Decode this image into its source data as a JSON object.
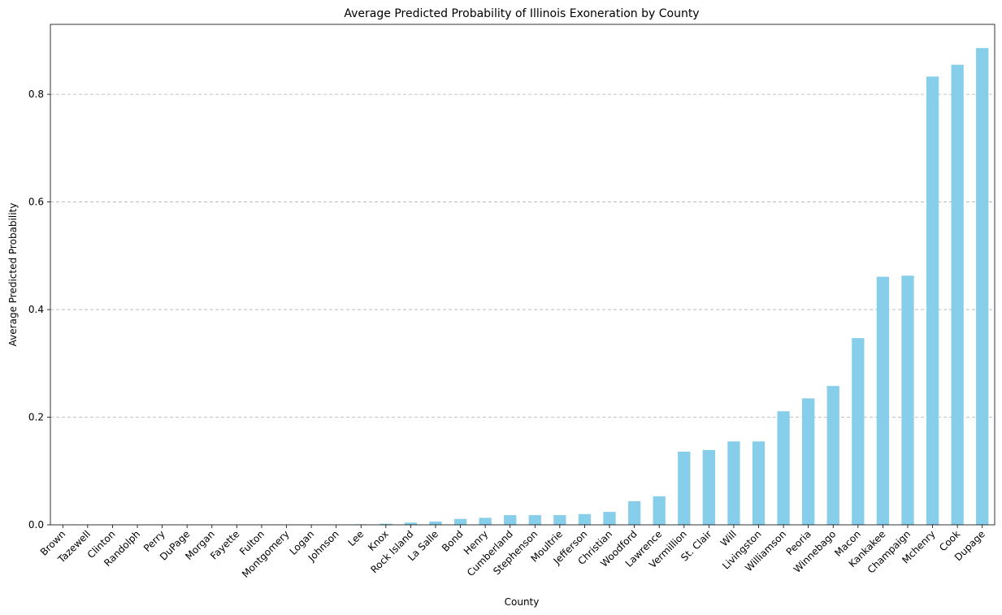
{
  "chart_data": {
    "type": "bar",
    "title": "Average Predicted Probability of Illinois Exoneration by County",
    "xlabel": "County",
    "ylabel": "Average Predicted Probability",
    "ylim": [
      0,
      0.93
    ],
    "yticks": [
      "0.0",
      "0.2",
      "0.4",
      "0.6",
      "0.8"
    ],
    "ytick_values": [
      0,
      0.2,
      0.4,
      0.6,
      0.8
    ],
    "grid": "y-dashed",
    "bar_color": "#87ceeb",
    "categories": [
      "Brown",
      "Tazewell",
      "Clinton",
      "Randolph",
      "Perry",
      "DuPage",
      "Morgan",
      "Fayette",
      "Fulton",
      "Montgomery",
      "Logan",
      "Johnson",
      "Lee",
      "Knox",
      "Rock Island",
      "La Salle",
      "Bond",
      "Henry",
      "Cumberland",
      "Stephenson",
      "Moultrie",
      "Jefferson",
      "Christian",
      "Woodford",
      "Lawrence",
      "Vermillion",
      "St. Clair",
      "Will",
      "Livingston",
      "Williamson",
      "Peoria",
      "Winnebago",
      "Macon",
      "Kankakee",
      "Champaign",
      "Mchenry",
      "Cook",
      "Dupage"
    ],
    "values": [
      0.0,
      0.0,
      0.0,
      0.0,
      0.0,
      0.0,
      0.0,
      0.0,
      0.0,
      0.0,
      0.0,
      0.0,
      0.001,
      0.002,
      0.004,
      0.006,
      0.011,
      0.013,
      0.018,
      0.018,
      0.018,
      0.02,
      0.024,
      0.044,
      0.053,
      0.136,
      0.139,
      0.155,
      0.155,
      0.211,
      0.235,
      0.258,
      0.347,
      0.461,
      0.463,
      0.833,
      0.855,
      0.886
    ]
  }
}
